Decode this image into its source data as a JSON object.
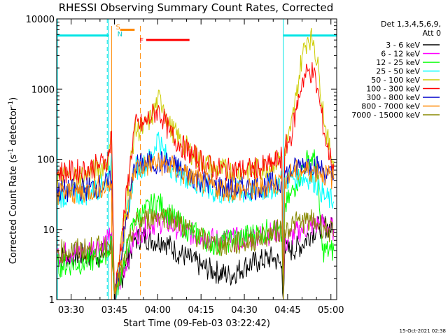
{
  "chart_data": {
    "type": "line",
    "title": "RHESSI Observing Summary Count Rates, Corrected",
    "xlabel": "Start Time (09-Feb-03 03:22:42)",
    "ylabel": "Corrected Count Rate (s^-1 detector^-1)",
    "ylabel_main": "Corrected Count Rate (s",
    "ylabel_sup1": "-1",
    "ylabel_mid": " detector",
    "ylabel_sup2": "-1",
    "ylabel_end": ")",
    "y_scale": "log",
    "xlim_minutes": [
      205,
      302
    ],
    "ylim": [
      1,
      10000
    ],
    "x_ticks": [
      {
        "t": 210,
        "label": "03:30"
      },
      {
        "t": 225,
        "label": "03:45"
      },
      {
        "t": 240,
        "label": "04:00"
      },
      {
        "t": 255,
        "label": "04:15"
      },
      {
        "t": 270,
        "label": "04:30"
      },
      {
        "t": 285,
        "label": "04:45"
      },
      {
        "t": 300,
        "label": "05:00"
      }
    ],
    "y_tick_labels": [
      {
        "v": 1,
        "label": "1"
      },
      {
        "v": 10,
        "label": "10"
      },
      {
        "v": 100,
        "label": "100"
      },
      {
        "v": 1000,
        "label": "1000"
      },
      {
        "v": 10000,
        "label": "10000"
      }
    ],
    "legend_header": [
      "Det 1,3,4,5,6,9,",
      "Att 0"
    ],
    "legend_placement": "right",
    "timestamp": "15-Oct-2021 02:38",
    "flag_labels": {
      "S": "S",
      "N": "N",
      "F": "F"
    },
    "markers": {
      "night_boundaries_minutes": [
        223,
        283.5
      ],
      "saa_boundaries_minutes": [
        224,
        234
      ],
      "end_line_minutes": 302,
      "flare_bar_minutes": [
        236,
        251
      ],
      "flare_bar_value": 5000,
      "saa_bar_minutes": [
        227,
        232
      ],
      "saa_bar_value": 7000,
      "night_bar_values": 5800
    },
    "series": [
      {
        "name": "3 - 6 keV",
        "color": "#000000",
        "points": [
          [
            205,
            4
          ],
          [
            210,
            4.2
          ],
          [
            215,
            4.3
          ],
          [
            220,
            4.2
          ],
          [
            223,
            5
          ],
          [
            224,
            8
          ],
          [
            225,
            1
          ],
          [
            232,
            7
          ],
          [
            235,
            8
          ],
          [
            238,
            7
          ],
          [
            242,
            7
          ],
          [
            246,
            5
          ],
          [
            250,
            4
          ],
          [
            255,
            3
          ],
          [
            260,
            2.5
          ],
          [
            265,
            2.2
          ],
          [
            270,
            3
          ],
          [
            275,
            3.5
          ],
          [
            280,
            4
          ],
          [
            283,
            3
          ],
          [
            283.5,
            1
          ],
          [
            284,
            5
          ],
          [
            286,
            5
          ],
          [
            290,
            6
          ],
          [
            293,
            9
          ],
          [
            296,
            11
          ],
          [
            299,
            11
          ],
          [
            301,
            10
          ]
        ]
      },
      {
        "name": "6 - 12 keV",
        "color": "#ff00ff",
        "points": [
          [
            205,
            4.5
          ],
          [
            210,
            4.6
          ],
          [
            215,
            5
          ],
          [
            220,
            6
          ],
          [
            223,
            7
          ],
          [
            224,
            9
          ],
          [
            225,
            1
          ],
          [
            232,
            8
          ],
          [
            235,
            10
          ],
          [
            238,
            12
          ],
          [
            242,
            13
          ],
          [
            246,
            11
          ],
          [
            250,
            9
          ],
          [
            255,
            8
          ],
          [
            260,
            7
          ],
          [
            265,
            7
          ],
          [
            270,
            7.5
          ],
          [
            275,
            8
          ],
          [
            280,
            9
          ],
          [
            283,
            10
          ],
          [
            283.5,
            1
          ],
          [
            284,
            6
          ],
          [
            286,
            8
          ],
          [
            290,
            10
          ],
          [
            293,
            11
          ],
          [
            296,
            12
          ],
          [
            299,
            11
          ],
          [
            301,
            10
          ]
        ]
      },
      {
        "name": "12 - 25 keV",
        "color": "#00ff00",
        "points": [
          [
            205,
            3
          ],
          [
            210,
            3.2
          ],
          [
            215,
            3.4
          ],
          [
            220,
            4
          ],
          [
            223,
            5
          ],
          [
            224,
            8
          ],
          [
            225,
            1
          ],
          [
            232,
            14
          ],
          [
            235,
            17
          ],
          [
            238,
            22
          ],
          [
            240,
            25
          ],
          [
            242,
            20
          ],
          [
            246,
            14
          ],
          [
            250,
            10
          ],
          [
            255,
            8
          ],
          [
            260,
            6
          ],
          [
            265,
            7
          ],
          [
            270,
            8
          ],
          [
            275,
            9
          ],
          [
            280,
            10
          ],
          [
            283,
            8
          ],
          [
            283.5,
            1
          ],
          [
            284,
            20
          ],
          [
            286,
            30
          ],
          [
            288,
            45
          ],
          [
            290,
            70
          ],
          [
            292,
            100
          ],
          [
            294,
            105
          ],
          [
            295,
            80
          ],
          [
            296,
            20
          ],
          [
            297,
            5
          ],
          [
            300,
            5
          ],
          [
            301,
            5
          ]
        ]
      },
      {
        "name": "25 - 50 keV",
        "color": "#00ffff",
        "points": [
          [
            205,
            30
          ],
          [
            210,
            30
          ],
          [
            215,
            32
          ],
          [
            220,
            40
          ],
          [
            222,
            50
          ],
          [
            223,
            60
          ],
          [
            224,
            120
          ],
          [
            225,
            1
          ],
          [
            232,
            75
          ],
          [
            235,
            80
          ],
          [
            238,
            110
          ],
          [
            240,
            220
          ],
          [
            242,
            130
          ],
          [
            245,
            75
          ],
          [
            250,
            55
          ],
          [
            255,
            40
          ],
          [
            260,
            33
          ],
          [
            265,
            32
          ],
          [
            270,
            33
          ],
          [
            275,
            35
          ],
          [
            280,
            40
          ],
          [
            283,
            50
          ],
          [
            283.5,
            1
          ],
          [
            284,
            50
          ],
          [
            286,
            55
          ],
          [
            288,
            55
          ],
          [
            290,
            55
          ],
          [
            293,
            55
          ],
          [
            296,
            40
          ],
          [
            298,
            28
          ],
          [
            301,
            25
          ]
        ]
      },
      {
        "name": "50 - 100 keV",
        "color": "#cccc00",
        "points": [
          [
            205,
            55
          ],
          [
            210,
            56
          ],
          [
            215,
            60
          ],
          [
            220,
            75
          ],
          [
            222,
            90
          ],
          [
            223,
            100
          ],
          [
            224,
            220
          ],
          [
            225,
            1
          ],
          [
            232,
            260
          ],
          [
            235,
            270
          ],
          [
            238,
            400
          ],
          [
            240,
            700
          ],
          [
            242,
            600
          ],
          [
            244,
            300
          ],
          [
            248,
            180
          ],
          [
            252,
            120
          ],
          [
            256,
            90
          ],
          [
            260,
            72
          ],
          [
            265,
            68
          ],
          [
            270,
            68
          ],
          [
            275,
            72
          ],
          [
            280,
            85
          ],
          [
            283,
            110
          ],
          [
            283.5,
            1
          ],
          [
            284,
            140
          ],
          [
            286,
            250
          ],
          [
            288,
            800
          ],
          [
            290,
            3000
          ],
          [
            292,
            5500
          ],
          [
            294,
            5000
          ],
          [
            296,
            1500
          ],
          [
            298,
            300
          ],
          [
            300,
            110
          ],
          [
            301,
            95
          ]
        ]
      },
      {
        "name": "100 - 300 keV",
        "color": "#ff0000",
        "points": [
          [
            205,
            65
          ],
          [
            210,
            66
          ],
          [
            215,
            70
          ],
          [
            220,
            85
          ],
          [
            222,
            95
          ],
          [
            223,
            110
          ],
          [
            224,
            250
          ],
          [
            225,
            1
          ],
          [
            232,
            300
          ],
          [
            235,
            310
          ],
          [
            238,
            420
          ],
          [
            240,
            500
          ],
          [
            242,
            380
          ],
          [
            244,
            240
          ],
          [
            248,
            160
          ],
          [
            252,
            115
          ],
          [
            256,
            88
          ],
          [
            260,
            72
          ],
          [
            265,
            70
          ],
          [
            270,
            70
          ],
          [
            275,
            74
          ],
          [
            280,
            85
          ],
          [
            283,
            110
          ],
          [
            283.5,
            1
          ],
          [
            284,
            140
          ],
          [
            286,
            200
          ],
          [
            288,
            500
          ],
          [
            290,
            1300
          ],
          [
            292,
            1800
          ],
          [
            294,
            1700
          ],
          [
            296,
            700
          ],
          [
            298,
            200
          ],
          [
            300,
            95
          ],
          [
            301,
            85
          ]
        ]
      },
      {
        "name": "300 - 800 keV",
        "color": "#0000cc",
        "points": [
          [
            205,
            35
          ],
          [
            210,
            35
          ],
          [
            215,
            38
          ],
          [
            220,
            42
          ],
          [
            223,
            45
          ],
          [
            224,
            50
          ],
          [
            225,
            1
          ],
          [
            232,
            80
          ],
          [
            235,
            85
          ],
          [
            238,
            90
          ],
          [
            242,
            90
          ],
          [
            246,
            80
          ],
          [
            250,
            62
          ],
          [
            255,
            50
          ],
          [
            260,
            42
          ],
          [
            265,
            38
          ],
          [
            270,
            38
          ],
          [
            275,
            40
          ],
          [
            280,
            45
          ],
          [
            283,
            50
          ],
          [
            283.5,
            1
          ],
          [
            284,
            60
          ],
          [
            287,
            70
          ],
          [
            290,
            85
          ],
          [
            293,
            88
          ],
          [
            296,
            75
          ],
          [
            299,
            60
          ],
          [
            301,
            55
          ]
        ]
      },
      {
        "name": "800 - 7000 keV",
        "color": "#ff8800",
        "points": [
          [
            205,
            33
          ],
          [
            210,
            33
          ],
          [
            215,
            35
          ],
          [
            220,
            40
          ],
          [
            223,
            43
          ],
          [
            224,
            45
          ],
          [
            225,
            1
          ],
          [
            232,
            75
          ],
          [
            235,
            80
          ],
          [
            238,
            85
          ],
          [
            242,
            85
          ],
          [
            246,
            75
          ],
          [
            250,
            58
          ],
          [
            255,
            47
          ],
          [
            260,
            40
          ],
          [
            265,
            36
          ],
          [
            270,
            36
          ],
          [
            275,
            38
          ],
          [
            280,
            43
          ],
          [
            283,
            48
          ],
          [
            283.5,
            1
          ],
          [
            284,
            55
          ],
          [
            287,
            65
          ],
          [
            290,
            68
          ],
          [
            293,
            68
          ],
          [
            296,
            66
          ],
          [
            299,
            58
          ],
          [
            301,
            52
          ]
        ]
      },
      {
        "name": "7000 - 15000 keV",
        "color": "#888800",
        "points": [
          [
            205,
            4.8
          ],
          [
            210,
            5
          ],
          [
            215,
            5.2
          ],
          [
            220,
            5.5
          ],
          [
            223,
            6
          ],
          [
            224,
            7
          ],
          [
            225,
            1
          ],
          [
            232,
            12
          ],
          [
            236,
            14
          ],
          [
            240,
            16
          ],
          [
            244,
            15
          ],
          [
            248,
            12
          ],
          [
            252,
            9
          ],
          [
            256,
            7
          ],
          [
            260,
            6
          ],
          [
            265,
            6
          ],
          [
            270,
            6.5
          ],
          [
            275,
            7.5
          ],
          [
            280,
            9
          ],
          [
            283,
            10
          ],
          [
            283.5,
            1
          ],
          [
            284,
            10
          ],
          [
            287,
            12
          ],
          [
            290,
            13
          ],
          [
            293,
            13
          ],
          [
            296,
            12
          ],
          [
            299,
            10
          ],
          [
            301,
            8
          ]
        ]
      }
    ]
  }
}
